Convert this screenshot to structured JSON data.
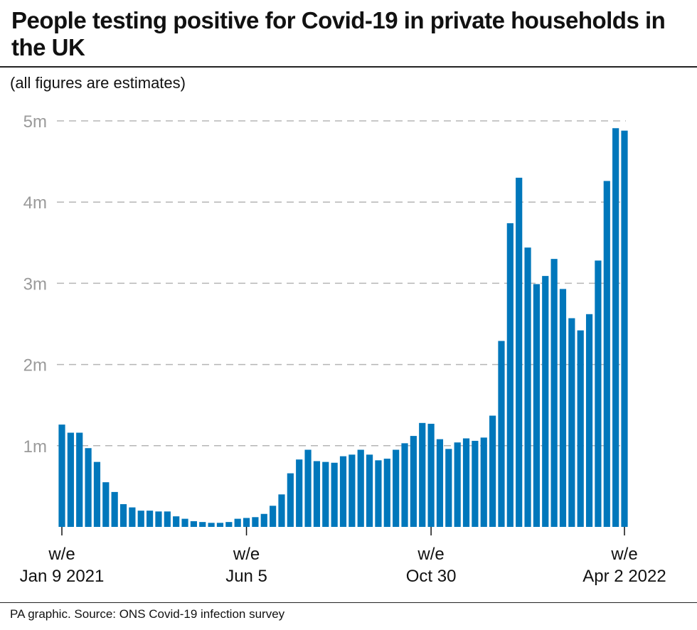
{
  "title": "People testing positive for Covid-19 in private households in the UK",
  "subtitle": "(all figures are estimates)",
  "footer": "PA graphic. Source: ONS Covid-19 infection survey",
  "chart_data": {
    "type": "bar",
    "title": "People testing positive for Covid-19 in private households in the UK",
    "subtitle": "(all figures are estimates)",
    "xlabel": "",
    "ylabel": "",
    "ylim": [
      0,
      5
    ],
    "y_unit": "millions",
    "grid": "horizontal dashed",
    "bar_color": "#0077bb",
    "yticks": [
      {
        "value": 1,
        "label": "1m"
      },
      {
        "value": 2,
        "label": "2m"
      },
      {
        "value": 3,
        "label": "3m"
      },
      {
        "value": 4,
        "label": "4m"
      },
      {
        "value": 5,
        "label": "5m"
      }
    ],
    "xticks": [
      {
        "index": 0,
        "line1": "w/e",
        "line2": "Jan 9 2021"
      },
      {
        "index": 21,
        "line1": "w/e",
        "line2": "Jun 5"
      },
      {
        "index": 42,
        "line1": "w/e",
        "line2": "Oct 30"
      },
      {
        "index": 64,
        "line1": "w/e",
        "line2": "Apr 2 2022"
      }
    ],
    "values": [
      1.26,
      1.16,
      1.16,
      0.97,
      0.8,
      0.55,
      0.43,
      0.28,
      0.24,
      0.2,
      0.2,
      0.19,
      0.19,
      0.13,
      0.1,
      0.07,
      0.06,
      0.05,
      0.05,
      0.06,
      0.1,
      0.11,
      0.12,
      0.16,
      0.26,
      0.4,
      0.66,
      0.83,
      0.95,
      0.81,
      0.8,
      0.79,
      0.87,
      0.89,
      0.95,
      0.89,
      0.82,
      0.84,
      0.95,
      1.03,
      1.12,
      1.28,
      1.27,
      1.08,
      0.96,
      1.04,
      1.09,
      1.06,
      1.1,
      1.37,
      2.29,
      3.74,
      4.3,
      3.44,
      2.99,
      3.09,
      3.3,
      2.93,
      2.57,
      2.42,
      2.62,
      3.28,
      4.26,
      4.91,
      4.88
    ]
  }
}
